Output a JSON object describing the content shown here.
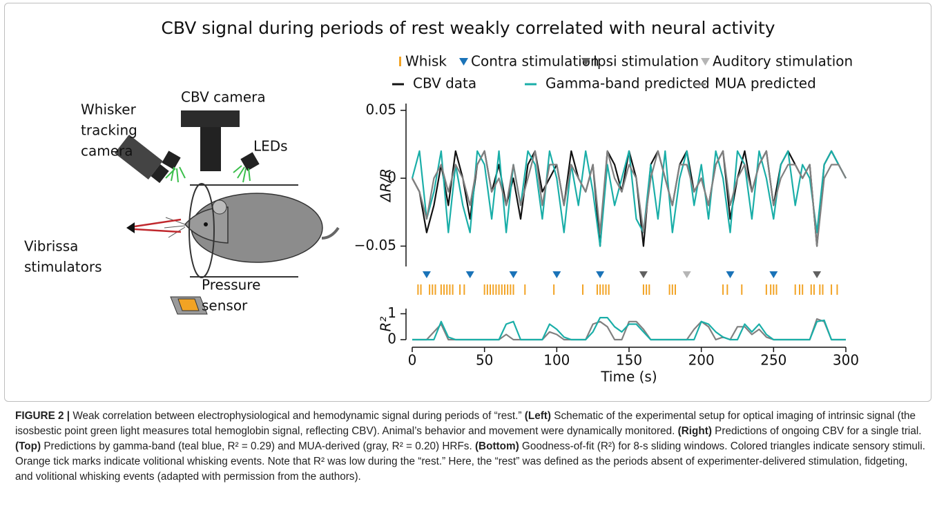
{
  "title": "CBV signal during periods of rest weakly correlated with neural activity",
  "schematic": {
    "labels": [
      [
        "Whisker",
        "tracking",
        "camera"
      ],
      [
        "CBV camera"
      ],
      [
        "LEDs"
      ],
      [
        "Vibrissa",
        "stimulators"
      ],
      [
        "Pressure",
        "sensor"
      ]
    ]
  },
  "chart_data": [
    {
      "type": "line",
      "ylabel": "ΔR/R",
      "x": [
        0,
        5,
        10,
        15,
        20,
        25,
        30,
        35,
        40,
        45,
        50,
        55,
        60,
        65,
        70,
        75,
        80,
        85,
        90,
        95,
        100,
        105,
        110,
        115,
        120,
        125,
        130,
        135,
        140,
        145,
        150,
        155,
        160,
        165,
        170,
        175,
        180,
        185,
        190,
        195,
        200,
        205,
        210,
        215,
        220,
        225,
        230,
        235,
        240,
        245,
        250,
        255,
        260,
        265,
        270,
        275,
        280,
        285,
        290,
        295,
        300
      ],
      "xlim": [
        0,
        300
      ],
      "ylim": [
        -0.065,
        0.055
      ],
      "yticks": [
        {
          "value": -0.05,
          "label": "−0.05"
        },
        0,
        0.05
      ],
      "series": [
        {
          "name": "CBV data",
          "color": "#111111",
          "values": [
            0,
            -0.01,
            -0.04,
            -0.02,
            0.01,
            -0.02,
            0.02,
            0.0,
            -0.03,
            0.01,
            0.02,
            -0.01,
            0.01,
            -0.02,
            0.0,
            -0.03,
            0.01,
            0.02,
            -0.01,
            0.0,
            0.01,
            -0.02,
            0.02,
            0.0,
            -0.01,
            0.01,
            -0.05,
            0.02,
            0.01,
            -0.01,
            0.02,
            0.0,
            -0.05,
            0.01,
            0.02,
            0.0,
            -0.02,
            0.01,
            0.02,
            -0.01,
            0.0,
            -0.02,
            0.01,
            0.02,
            -0.03,
            0.0,
            0.02,
            -0.01,
            0.01,
            0.02,
            -0.02,
            0.01,
            0.02,
            0.01,
            0.0,
            0.01,
            -0.05,
            0.01,
            0.02,
            0.01,
            0.0
          ]
        },
        {
          "name": "Gamma-band predicted",
          "color": "#1aaea8",
          "values": [
            0,
            0.02,
            -0.03,
            -0.01,
            0.02,
            -0.04,
            0.01,
            -0.02,
            -0.04,
            0.02,
            0.01,
            -0.03,
            0.02,
            -0.04,
            0.01,
            -0.02,
            0.02,
            0.01,
            -0.03,
            0.02,
            0.0,
            -0.04,
            0.01,
            -0.02,
            0.02,
            -0.01,
            -0.05,
            0.01,
            -0.02,
            0.0,
            0.02,
            -0.03,
            -0.04,
            0.01,
            -0.03,
            0.02,
            -0.04,
            0.0,
            0.02,
            -0.02,
            0.01,
            -0.03,
            0.02,
            0.0,
            -0.04,
            0.02,
            0.01,
            -0.03,
            0.02,
            0.0,
            -0.03,
            0.01,
            0.02,
            -0.02,
            0.01,
            0.0,
            -0.04,
            0.01,
            0.02,
            0.01,
            0.0
          ]
        },
        {
          "name": "MUA predicted",
          "color": "#808080",
          "values": [
            0,
            -0.01,
            -0.03,
            0.0,
            0.01,
            -0.01,
            0.01,
            0.0,
            -0.02,
            0.01,
            0.02,
            -0.01,
            0.0,
            -0.02,
            0.01,
            -0.02,
            0.0,
            0.02,
            -0.02,
            0.01,
            0.01,
            -0.02,
            0.01,
            0.0,
            -0.01,
            0.01,
            -0.04,
            0.02,
            0.0,
            -0.01,
            0.01,
            0.0,
            -0.04,
            0.0,
            0.02,
            0.0,
            -0.02,
            0.01,
            0.01,
            -0.01,
            0.0,
            -0.02,
            0.01,
            0.02,
            -0.02,
            0.0,
            0.01,
            -0.01,
            0.01,
            0.02,
            -0.02,
            0.0,
            0.01,
            0.01,
            0.0,
            0.01,
            -0.05,
            0.0,
            0.01,
            0.01,
            0.0
          ]
        }
      ],
      "events": [
        {
          "name": "Whisk",
          "color": "#f2a324",
          "shape": "tick",
          "x": [
            4,
            6,
            12,
            14,
            16,
            20,
            22,
            24,
            26,
            28,
            33,
            36,
            50,
            52,
            54,
            56,
            58,
            60,
            62,
            64,
            66,
            68,
            70,
            78,
            98,
            118,
            128,
            130,
            132,
            134,
            136,
            160,
            162,
            164,
            178,
            180,
            182,
            215,
            218,
            228,
            245,
            248,
            250,
            252,
            265,
            268,
            270,
            276,
            278,
            282,
            284,
            290,
            294
          ]
        },
        {
          "name": "Contra stimulation",
          "color": "#1a73b8",
          "shape": "triangle",
          "x": [
            10,
            40,
            70,
            100,
            130,
            220,
            250
          ]
        },
        {
          "name": "Ipsi stimulation",
          "color": "#606060",
          "shape": "triangle",
          "x": [
            160,
            280
          ]
        },
        {
          "name": "Auditory stimulation",
          "color": "#b5b5b5",
          "shape": "triangle",
          "x": [
            190
          ]
        }
      ]
    },
    {
      "type": "line",
      "ylabel": "R²",
      "xlabel": "Time (s)",
      "x": [
        0,
        5,
        10,
        15,
        20,
        25,
        30,
        35,
        40,
        45,
        50,
        55,
        60,
        65,
        70,
        75,
        80,
        85,
        90,
        95,
        100,
        105,
        110,
        115,
        120,
        125,
        130,
        135,
        140,
        145,
        150,
        155,
        160,
        165,
        170,
        175,
        180,
        185,
        190,
        195,
        200,
        205,
        210,
        215,
        220,
        225,
        230,
        235,
        240,
        245,
        250,
        255,
        260,
        265,
        270,
        275,
        280,
        285,
        290,
        295,
        300
      ],
      "xlim": [
        0,
        300
      ],
      "xticks": [
        0,
        50,
        100,
        150,
        200,
        250,
        300
      ],
      "ylim": [
        0,
        1.2
      ],
      "yticks": [
        0,
        1
      ],
      "series": [
        {
          "color": "#808080",
          "values": [
            0,
            0,
            0,
            0.3,
            0.6,
            0,
            0,
            0,
            0,
            0,
            0,
            0,
            0,
            0.2,
            0,
            0,
            0,
            0,
            0,
            0.3,
            0.2,
            0,
            0,
            0,
            0,
            0.6,
            0.7,
            0.5,
            0,
            0,
            0.7,
            0.7,
            0.4,
            0,
            0,
            0,
            0,
            0,
            0,
            0.4,
            0.7,
            0.5,
            0,
            0.1,
            0,
            0.5,
            0.5,
            0.2,
            0.4,
            0.1,
            0,
            0,
            0,
            0,
            0,
            0,
            0.8,
            0.7,
            0,
            0,
            0
          ]
        },
        {
          "color": "#1aaea8",
          "values": [
            0,
            0,
            0,
            0,
            0.7,
            0.1,
            0,
            0,
            0,
            0,
            0,
            0,
            0,
            0.6,
            0.7,
            0,
            0,
            0,
            0,
            0.6,
            0.4,
            0.1,
            0,
            0,
            0,
            0.3,
            0.85,
            0.85,
            0.5,
            0.3,
            0.6,
            0.6,
            0.3,
            0,
            0,
            0,
            0,
            0,
            0,
            0,
            0.7,
            0.6,
            0.3,
            0.1,
            0,
            0,
            0.6,
            0.3,
            0.6,
            0.2,
            0,
            0,
            0,
            0,
            0,
            0,
            0.7,
            0.75,
            0,
            0,
            0
          ]
        }
      ]
    }
  ],
  "caption": [
    {
      "text": "FIGURE 2 | ",
      "bold": true
    },
    {
      "text": "Weak correlation between electrophysiological and hemodynamic signal during periods of “rest.” "
    },
    {
      "text": "(Left)",
      "bold": true
    },
    {
      "text": " Schematic of the experimental setup for optical imaging of intrinsic signal (the isosbestic point green light measures total hemoglobin signal, reflecting CBV). Animal’s behavior and movement were dynamically monitored. "
    },
    {
      "text": "(Right)",
      "bold": true
    },
    {
      "text": " Predictions of ongoing CBV for a single trial. "
    },
    {
      "text": "(Top)",
      "bold": true
    },
    {
      "text": " Predictions by gamma-band (teal blue, R² = 0.29) and MUA-derived (gray, R² = 0.20) HRFs. "
    },
    {
      "text": "(Bottom)",
      "bold": true
    },
    {
      "text": " Goodness-of-fit (R²) for 8-s sliding windows. Colored triangles indicate sensory stimuli. Orange tick marks indicate volitional whisking events. Note that R² was low during the “rest.” Here, the “rest” was defined as the periods absent of experimenter-delivered stimulation, fidgeting, and volitional whisking events (adapted with permission from the authors)."
    }
  ]
}
